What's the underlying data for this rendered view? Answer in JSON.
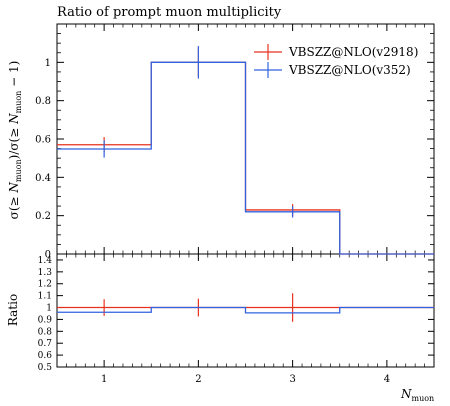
{
  "chart_data": {
    "type": "line",
    "title": "Ratio of prompt muon multiplicity",
    "xlabel": "N",
    "xlabel_sub": "muon",
    "ylabel": "σ(≥ Nmuon) / σ(≥ Nmuon − 1)",
    "ylabel_parts": {
      "a": "σ(≥ ",
      "b": "N",
      "c": "muon",
      "d": ")/σ(≥ ",
      "e": "N",
      "f": "muon",
      "g": " − 1)"
    },
    "ratio_ylabel": "Ratio",
    "xlim": [
      0.5,
      4.5
    ],
    "ylim": [
      0,
      1.2
    ],
    "ratio_ylim": [
      0.5,
      1.45
    ],
    "x_ticks": [
      "1",
      "2",
      "3",
      "4"
    ],
    "y_ticks": [
      "0",
      "0.2",
      "0.4",
      "0.6",
      "0.8",
      "1"
    ],
    "ratio_y_ticks": [
      "0.5",
      "0.6",
      "0.7",
      "0.8",
      "0.9",
      "1",
      "1.1",
      "1.2",
      "1.3",
      "1.4"
    ],
    "legend_position": "top-right",
    "series": [
      {
        "name": "VBSZZ@NLO(v2918)",
        "color": "#e8321e",
        "bins": [
          [
            0.5,
            1.5
          ],
          [
            1.5,
            2.5
          ],
          [
            2.5,
            3.5
          ],
          [
            3.5,
            4.5
          ]
        ],
        "x": [
          1,
          2,
          3,
          4
        ],
        "values": [
          0.57,
          1.0,
          0.23,
          0.0
        ],
        "errors": [
          0.04,
          0.075,
          0.03,
          0.0
        ],
        "ratio": [
          1.0,
          1.0,
          1.0,
          1.0
        ],
        "ratio_errors": [
          0.07,
          0.075,
          0.12,
          0.0
        ]
      },
      {
        "name": "VBSZZ@NLO(v352)",
        "color": "#3163e0",
        "bins": [
          [
            0.5,
            1.5
          ],
          [
            1.5,
            2.5
          ],
          [
            2.5,
            3.5
          ],
          [
            3.5,
            4.5
          ]
        ],
        "x": [
          1,
          2,
          3,
          4
        ],
        "values": [
          0.548,
          1.0,
          0.22,
          0.0
        ],
        "errors": [
          0.045,
          0.085,
          0.03,
          0.0
        ],
        "ratio": [
          0.96,
          1.0,
          0.955,
          1.0
        ],
        "ratio_errors": [
          0.0,
          0.0,
          0.0,
          0.0
        ]
      }
    ]
  }
}
